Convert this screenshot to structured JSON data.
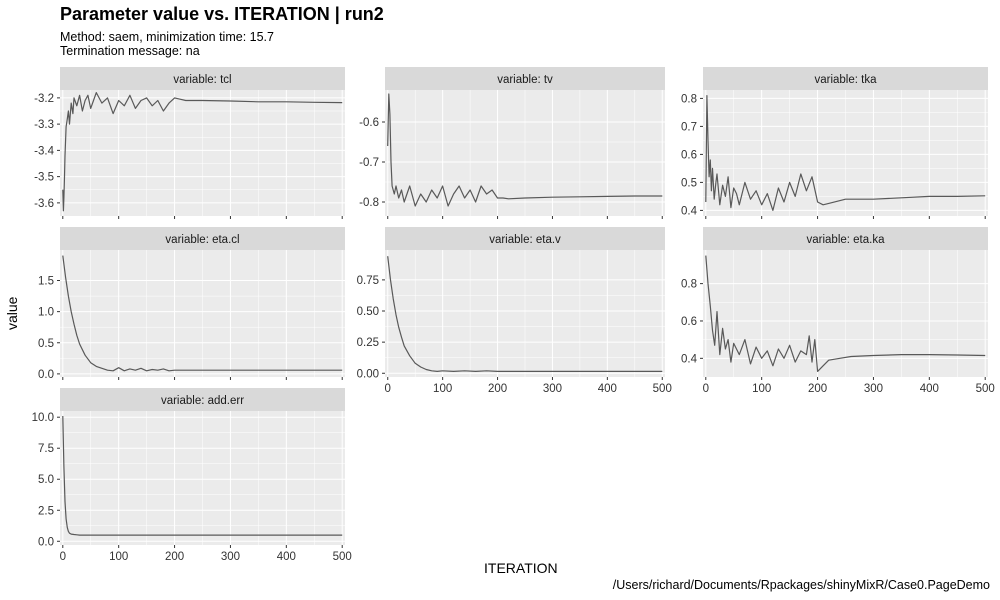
{
  "plot": {
    "title": "Parameter value vs. ITERATION | run2",
    "subtitle_line1": "Method: saem, minimization time: 15.7",
    "subtitle_line2": "Termination message: na",
    "ylabel": "value",
    "xlabel": "ITERATION",
    "caption": "/Users/richard/Documents/Rpackages/shinyMixR/Case0.PageDemo"
  },
  "colors": {
    "panel_bg": "#EBEBEB",
    "strip_bg": "#D9D9D9",
    "grid": "#FFFFFF",
    "line": "#595959"
  },
  "chart_data": [
    {
      "type": "line",
      "strip": "variable: tcl",
      "xlim": [
        -5,
        505
      ],
      "ylim": [
        -3.65,
        -3.17
      ],
      "xticks": [
        0,
        100,
        200,
        300,
        400,
        500
      ],
      "xtick_labels": [],
      "yticks": [
        -3.6,
        -3.5,
        -3.4,
        -3.3,
        -3.2
      ],
      "ytick_labels": [
        "-3.6",
        "-3.5",
        "-3.4",
        "-3.3",
        "-3.2"
      ],
      "series": [
        {
          "x": [
            0,
            1,
            2,
            3,
            4,
            5,
            6,
            8,
            10,
            12,
            15,
            18,
            20,
            25,
            30,
            35,
            40,
            45,
            50,
            55,
            60,
            70,
            80,
            90,
            100,
            110,
            120,
            130,
            140,
            150,
            160,
            170,
            180,
            190,
            200,
            210,
            220,
            250,
            300,
            350,
            400,
            450,
            500
          ],
          "y": [
            -3.55,
            -3.63,
            -3.58,
            -3.5,
            -3.42,
            -3.36,
            -3.31,
            -3.28,
            -3.25,
            -3.3,
            -3.22,
            -3.26,
            -3.2,
            -3.23,
            -3.19,
            -3.25,
            -3.21,
            -3.19,
            -3.24,
            -3.21,
            -3.18,
            -3.22,
            -3.2,
            -3.26,
            -3.21,
            -3.23,
            -3.19,
            -3.24,
            -3.21,
            -3.2,
            -3.23,
            -3.21,
            -3.25,
            -3.22,
            -3.2,
            -3.205,
            -3.21,
            -3.21,
            -3.212,
            -3.215,
            -3.215,
            -3.217,
            -3.218
          ]
        }
      ]
    },
    {
      "type": "line",
      "strip": "variable: tv",
      "xlim": [
        -5,
        505
      ],
      "ylim": [
        -0.835,
        -0.52
      ],
      "xticks": [
        0,
        100,
        200,
        300,
        400,
        500
      ],
      "xtick_labels": [],
      "yticks": [
        -0.8,
        -0.7,
        -0.6
      ],
      "ytick_labels": [
        "-0.8",
        "-0.7",
        "-0.6"
      ],
      "series": [
        {
          "x": [
            0,
            2,
            4,
            6,
            8,
            10,
            12,
            15,
            20,
            25,
            30,
            40,
            50,
            60,
            70,
            80,
            90,
            100,
            110,
            120,
            130,
            140,
            150,
            160,
            170,
            180,
            190,
            200,
            210,
            220,
            250,
            300,
            350,
            400,
            450,
            500
          ],
          "y": [
            -0.66,
            -0.53,
            -0.58,
            -0.7,
            -0.76,
            -0.77,
            -0.78,
            -0.76,
            -0.79,
            -0.77,
            -0.8,
            -0.76,
            -0.81,
            -0.78,
            -0.8,
            -0.77,
            -0.79,
            -0.76,
            -0.81,
            -0.78,
            -0.76,
            -0.79,
            -0.77,
            -0.8,
            -0.76,
            -0.78,
            -0.77,
            -0.79,
            -0.79,
            -0.792,
            -0.79,
            -0.788,
            -0.787,
            -0.786,
            -0.785,
            -0.785
          ]
        }
      ]
    },
    {
      "type": "line",
      "strip": "variable: tka",
      "xlim": [
        -5,
        505
      ],
      "ylim": [
        0.38,
        0.83
      ],
      "xticks": [
        0,
        100,
        200,
        300,
        400,
        500
      ],
      "xtick_labels": [],
      "yticks": [
        0.4,
        0.5,
        0.6,
        0.7,
        0.8
      ],
      "ytick_labels": [
        "0.4",
        "0.5",
        "0.6",
        "0.7",
        "0.8"
      ],
      "series": [
        {
          "x": [
            0,
            2,
            4,
            6,
            8,
            10,
            12,
            15,
            18,
            20,
            25,
            30,
            35,
            40,
            45,
            50,
            55,
            60,
            70,
            80,
            90,
            100,
            110,
            120,
            130,
            140,
            150,
            160,
            170,
            180,
            190,
            200,
            210,
            220,
            250,
            300,
            350,
            400,
            450,
            500
          ],
          "y": [
            0.43,
            0.81,
            0.65,
            0.52,
            0.58,
            0.47,
            0.55,
            0.44,
            0.5,
            0.53,
            0.42,
            0.49,
            0.45,
            0.52,
            0.41,
            0.48,
            0.46,
            0.42,
            0.5,
            0.44,
            0.47,
            0.42,
            0.46,
            0.4,
            0.48,
            0.43,
            0.5,
            0.45,
            0.53,
            0.47,
            0.52,
            0.43,
            0.42,
            0.425,
            0.44,
            0.44,
            0.445,
            0.45,
            0.45,
            0.452
          ]
        }
      ]
    },
    {
      "type": "line",
      "strip": "variable: eta.cl",
      "xlim": [
        -5,
        505
      ],
      "ylim": [
        -0.05,
        1.99
      ],
      "xticks": [
        0,
        100,
        200,
        300,
        400,
        500
      ],
      "xtick_labels": [],
      "yticks": [
        0,
        0.5,
        1,
        1.5
      ],
      "ytick_labels": [
        "0.0",
        "0.5",
        "1.0",
        "1.5"
      ],
      "series": [
        {
          "x": [
            0,
            5,
            10,
            15,
            20,
            25,
            30,
            40,
            50,
            60,
            70,
            80,
            90,
            100,
            110,
            120,
            130,
            140,
            150,
            160,
            170,
            180,
            190,
            200,
            220,
            250,
            300,
            350,
            400,
            450,
            500
          ],
          "y": [
            1.9,
            1.55,
            1.25,
            1.0,
            0.8,
            0.62,
            0.48,
            0.3,
            0.18,
            0.12,
            0.09,
            0.06,
            0.05,
            0.1,
            0.05,
            0.08,
            0.06,
            0.09,
            0.05,
            0.07,
            0.06,
            0.08,
            0.05,
            0.06,
            0.06,
            0.06,
            0.06,
            0.06,
            0.06,
            0.06,
            0.06
          ]
        }
      ]
    },
    {
      "type": "line",
      "strip": "variable: eta.v",
      "xlim": [
        -5,
        505
      ],
      "ylim": [
        -0.03,
        0.99
      ],
      "xticks": [
        0,
        100,
        200,
        300,
        400,
        500
      ],
      "xtick_labels": [
        "0",
        "100",
        "200",
        "300",
        "400",
        "500"
      ],
      "yticks": [
        0,
        0.25,
        0.5,
        0.75
      ],
      "ytick_labels": [
        "0.00",
        "0.25",
        "0.50",
        "0.75"
      ],
      "series": [
        {
          "x": [
            0,
            5,
            10,
            15,
            20,
            25,
            30,
            40,
            50,
            60,
            70,
            80,
            90,
            100,
            120,
            140,
            160,
            180,
            200,
            250,
            300,
            350,
            400,
            450,
            500
          ],
          "y": [
            0.94,
            0.75,
            0.6,
            0.47,
            0.37,
            0.29,
            0.22,
            0.14,
            0.08,
            0.05,
            0.03,
            0.02,
            0.015,
            0.02,
            0.015,
            0.02,
            0.015,
            0.02,
            0.015,
            0.015,
            0.015,
            0.015,
            0.015,
            0.015,
            0.015
          ]
        }
      ]
    },
    {
      "type": "line",
      "strip": "variable: eta.ka",
      "xlim": [
        -5,
        505
      ],
      "ylim": [
        0.3,
        0.98
      ],
      "xticks": [
        0,
        100,
        200,
        300,
        400,
        500
      ],
      "xtick_labels": [
        "0",
        "100",
        "200",
        "300",
        "400",
        "500"
      ],
      "yticks": [
        0.4,
        0.6,
        0.8
      ],
      "ytick_labels": [
        "0.4",
        "0.6",
        "0.8"
      ],
      "series": [
        {
          "x": [
            0,
            4,
            8,
            12,
            16,
            20,
            25,
            30,
            35,
            40,
            45,
            50,
            60,
            70,
            80,
            90,
            100,
            110,
            120,
            130,
            140,
            150,
            160,
            170,
            180,
            185,
            190,
            195,
            200,
            210,
            220,
            240,
            260,
            300,
            350,
            400,
            450,
            500
          ],
          "y": [
            0.95,
            0.8,
            0.68,
            0.55,
            0.47,
            0.65,
            0.42,
            0.56,
            0.45,
            0.5,
            0.38,
            0.48,
            0.42,
            0.5,
            0.37,
            0.46,
            0.4,
            0.44,
            0.36,
            0.45,
            0.4,
            0.47,
            0.38,
            0.44,
            0.42,
            0.52,
            0.38,
            0.5,
            0.33,
            0.36,
            0.39,
            0.4,
            0.41,
            0.415,
            0.42,
            0.42,
            0.418,
            0.415
          ]
        }
      ]
    },
    {
      "type": "line",
      "strip": "variable: add.err",
      "xlim": [
        -5,
        505
      ],
      "ylim": [
        -0.3,
        10.5
      ],
      "xticks": [
        0,
        100,
        200,
        300,
        400,
        500
      ],
      "xtick_labels": [
        "0",
        "100",
        "200",
        "300",
        "400",
        "500"
      ],
      "yticks": [
        0,
        2.5,
        5,
        7.5,
        10
      ],
      "ytick_labels": [
        "0.0",
        "2.5",
        "5.0",
        "7.5",
        "10.0"
      ],
      "series": [
        {
          "x": [
            0,
            2,
            4,
            6,
            8,
            10,
            12,
            15,
            20,
            25,
            30,
            40,
            60,
            80,
            100,
            150,
            200,
            300,
            400,
            500
          ],
          "y": [
            10.1,
            6.0,
            3.2,
            1.8,
            1.1,
            0.8,
            0.65,
            0.58,
            0.55,
            0.52,
            0.5,
            0.5,
            0.5,
            0.5,
            0.5,
            0.5,
            0.5,
            0.5,
            0.5,
            0.5
          ]
        }
      ]
    }
  ]
}
